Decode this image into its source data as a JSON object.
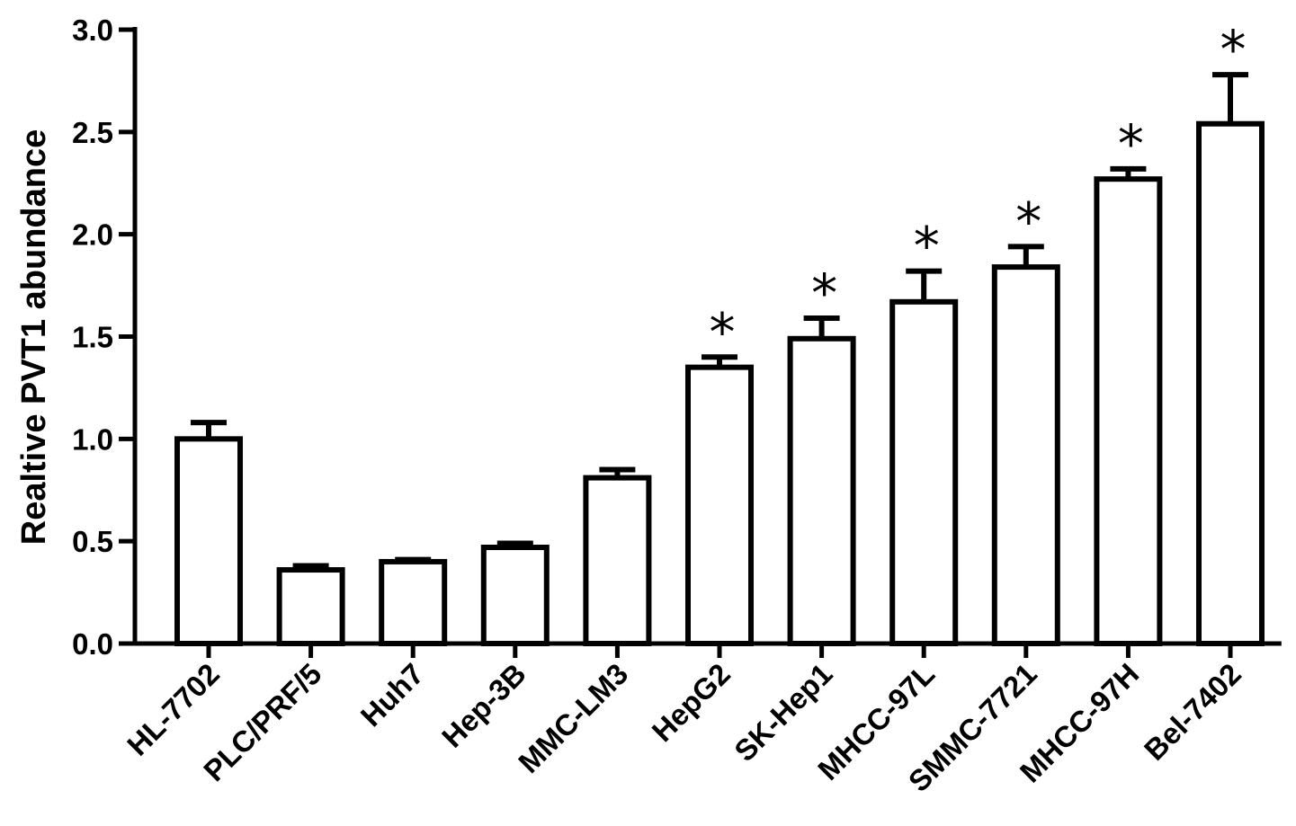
{
  "chart_data": {
    "type": "bar",
    "title": "",
    "xlabel": "",
    "ylabel": "Realtive PVT1 abundance",
    "ylim": [
      0,
      3.0
    ],
    "yticks": [
      "0.0",
      "0.5",
      "1.0",
      "1.5",
      "2.0",
      "2.5",
      "3.0"
    ],
    "grid": false,
    "legend": "none",
    "categories": [
      "HL-7702",
      "PLC/PRF/5",
      "Huh7",
      "Hep-3B",
      "MMC-LM3",
      "HepG2",
      "SK-Hep1",
      "MHCC-97L",
      "SMMC-7721",
      "MHCC-97H",
      "Bel-7402"
    ],
    "values": [
      1.0,
      0.36,
      0.4,
      0.47,
      0.81,
      1.35,
      1.49,
      1.67,
      1.84,
      2.27,
      2.54
    ],
    "errors": [
      0.08,
      0.02,
      0.01,
      0.02,
      0.04,
      0.05,
      0.1,
      0.15,
      0.1,
      0.05,
      0.24
    ],
    "significance": [
      "",
      "",
      "",
      "",
      "",
      "*",
      "*",
      "*",
      "*",
      "*",
      "*"
    ],
    "colors": {
      "bar_fill": "#ffffff",
      "bar_stroke": "#000000",
      "axis": "#000000"
    }
  }
}
